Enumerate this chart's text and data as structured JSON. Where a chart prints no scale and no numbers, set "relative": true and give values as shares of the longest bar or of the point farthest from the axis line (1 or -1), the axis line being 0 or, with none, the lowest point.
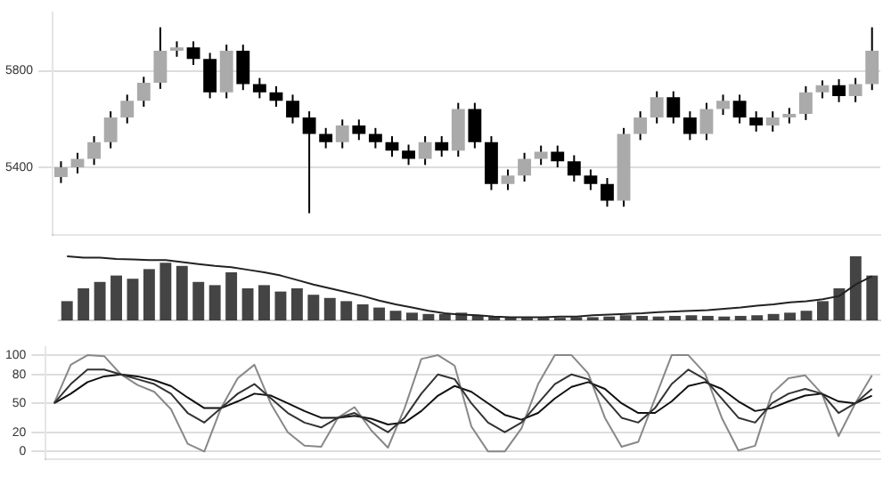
{
  "chart_data": [
    {
      "type": "candlestick",
      "categories": [
        null,
        null,
        null,
        null,
        null,
        null,
        null,
        null,
        null,
        null,
        null,
        null,
        null,
        null,
        null,
        null,
        null,
        null,
        null,
        null,
        null,
        null,
        null,
        null,
        null,
        null,
        null,
        null,
        null,
        null,
        null,
        null,
        null,
        null,
        null,
        null,
        null,
        null,
        null,
        null,
        null,
        null,
        null,
        null,
        null,
        null,
        null,
        null,
        null,
        null
      ],
      "ohlc": [
        [
          5360,
          5425,
          5335,
          5400
        ],
        [
          5400,
          5460,
          5375,
          5435
        ],
        [
          5435,
          5529,
          5410,
          5504
        ],
        [
          5504,
          5632,
          5479,
          5607
        ],
        [
          5607,
          5701,
          5582,
          5676
        ],
        [
          5676,
          5775,
          5651,
          5750
        ],
        [
          5750,
          5980,
          5725,
          5883
        ],
        [
          5883,
          5922,
          5858,
          5897
        ],
        [
          5897,
          5922,
          5824,
          5849
        ],
        [
          5849,
          5874,
          5686,
          5711
        ],
        [
          5711,
          5908,
          5686,
          5883
        ],
        [
          5883,
          5908,
          5720,
          5745
        ],
        [
          5745,
          5770,
          5686,
          5711
        ],
        [
          5711,
          5736,
          5651,
          5676
        ],
        [
          5676,
          5701,
          5582,
          5607
        ],
        [
          5607,
          5632,
          5210,
          5538
        ],
        [
          5538,
          5563,
          5479,
          5504
        ],
        [
          5504,
          5598,
          5479,
          5573
        ],
        [
          5573,
          5598,
          5513,
          5538
        ],
        [
          5538,
          5563,
          5479,
          5504
        ],
        [
          5504,
          5529,
          5444,
          5469
        ],
        [
          5469,
          5494,
          5410,
          5435
        ],
        [
          5435,
          5529,
          5410,
          5504
        ],
        [
          5504,
          5529,
          5444,
          5469
        ],
        [
          5469,
          5667,
          5444,
          5642
        ],
        [
          5642,
          5667,
          5479,
          5504
        ],
        [
          5504,
          5529,
          5306,
          5331
        ],
        [
          5331,
          5391,
          5306,
          5366
        ],
        [
          5366,
          5460,
          5341,
          5435
        ],
        [
          5435,
          5490,
          5410,
          5465
        ],
        [
          5465,
          5490,
          5400,
          5425
        ],
        [
          5425,
          5450,
          5341,
          5366
        ],
        [
          5366,
          5391,
          5306,
          5331
        ],
        [
          5331,
          5356,
          5237,
          5262
        ],
        [
          5262,
          5563,
          5237,
          5538
        ],
        [
          5538,
          5632,
          5513,
          5607
        ],
        [
          5607,
          5715,
          5582,
          5690
        ],
        [
          5690,
          5715,
          5582,
          5607
        ],
        [
          5607,
          5632,
          5513,
          5538
        ],
        [
          5538,
          5667,
          5513,
          5642
        ],
        [
          5642,
          5701,
          5617,
          5676
        ],
        [
          5676,
          5701,
          5582,
          5607
        ],
        [
          5607,
          5632,
          5548,
          5573
        ],
        [
          5573,
          5632,
          5548,
          5607
        ],
        [
          5607,
          5646,
          5582,
          5621
        ],
        [
          5621,
          5736,
          5596,
          5711
        ],
        [
          5711,
          5760,
          5686,
          5740
        ],
        [
          5740,
          5765,
          5670,
          5695
        ],
        [
          5695,
          5770,
          5670,
          5745
        ],
        [
          5745,
          5980,
          5720,
          5883
        ]
      ],
      "ylim": [
        5120,
        6040
      ],
      "yticks": [
        5400,
        5800
      ],
      "grid": "y"
    },
    {
      "type": "bar",
      "relative": true,
      "categories": [
        null,
        null,
        null,
        null,
        null,
        null,
        null,
        null,
        null,
        null,
        null,
        null,
        null,
        null,
        null,
        null,
        null,
        null,
        null,
        null,
        null,
        null,
        null,
        null,
        null,
        null,
        null,
        null,
        null,
        null,
        null,
        null,
        null,
        null,
        null,
        null,
        null,
        null,
        null,
        null,
        null,
        null,
        null,
        null,
        null,
        null,
        null,
        null,
        null,
        null
      ],
      "color": "#444444",
      "values": [
        0.3,
        0.5,
        0.6,
        0.7,
        0.65,
        0.8,
        0.9,
        0.85,
        0.6,
        0.55,
        0.75,
        0.5,
        0.55,
        0.45,
        0.5,
        0.4,
        0.35,
        0.3,
        0.25,
        0.2,
        0.15,
        0.12,
        0.1,
        0.1,
        0.12,
        0.08,
        0.06,
        0.05,
        0.04,
        0.04,
        0.04,
        0.05,
        0.05,
        0.06,
        0.08,
        0.07,
        0.06,
        0.07,
        0.08,
        0.07,
        0.06,
        0.07,
        0.08,
        0.1,
        0.12,
        0.15,
        0.3,
        0.5,
        1,
        0.7
      ]
    },
    {
      "type": "line",
      "relative": true,
      "categories": [
        null,
        null,
        null,
        null,
        null,
        null,
        null,
        null,
        null,
        null,
        null,
        null,
        null,
        null,
        null,
        null,
        null,
        null,
        null,
        null,
        null,
        null,
        null,
        null,
        null,
        null,
        null,
        null,
        null,
        null,
        null,
        null,
        null,
        null,
        null,
        null,
        null,
        null,
        null,
        null,
        null,
        null,
        null,
        null,
        null,
        null,
        null,
        null,
        null,
        null
      ],
      "color": "#222222",
      "values": [
        1,
        0.98,
        0.98,
        0.96,
        0.95,
        0.94,
        0.94,
        0.91,
        0.88,
        0.85,
        0.83,
        0.79,
        0.75,
        0.7,
        0.63,
        0.56,
        0.5,
        0.44,
        0.38,
        0.31,
        0.25,
        0.2,
        0.15,
        0.11,
        0.09,
        0.08,
        0.06,
        0.05,
        0.05,
        0.05,
        0.06,
        0.06,
        0.08,
        0.09,
        0.1,
        0.11,
        0.13,
        0.14,
        0.15,
        0.16,
        0.18,
        0.2,
        0.23,
        0.25,
        0.28,
        0.3,
        0.33,
        0.38,
        0.56,
        0.69
      ]
    },
    {
      "type": "line",
      "categories": [
        null,
        null,
        null,
        null,
        null,
        null,
        null,
        null,
        null,
        null,
        null,
        null,
        null,
        null,
        null,
        null,
        null,
        null,
        null,
        null,
        null,
        null,
        null,
        null,
        null,
        null,
        null,
        null,
        null,
        null,
        null,
        null,
        null,
        null,
        null,
        null,
        null,
        null,
        null,
        null,
        null,
        null,
        null,
        null,
        null,
        null,
        null,
        null,
        null,
        null
      ],
      "series": [
        {
          "color": "#333333",
          "values": [
            50,
            70,
            85,
            85,
            80,
            75,
            70,
            60,
            40,
            30,
            45,
            60,
            70,
            55,
            40,
            30,
            25,
            35,
            40,
            30,
            20,
            35,
            60,
            80,
            75,
            50,
            30,
            20,
            30,
            50,
            70,
            80,
            75,
            55,
            35,
            30,
            45,
            70,
            85,
            75,
            55,
            35,
            30,
            50,
            60,
            65,
            60,
            40,
            50,
            65
          ]
        },
        {
          "color": "#111111",
          "values": [
            50,
            60,
            72,
            78,
            80,
            78,
            74,
            68,
            56,
            45,
            45,
            52,
            60,
            58,
            50,
            42,
            35,
            35,
            37,
            34,
            28,
            30,
            42,
            58,
            68,
            62,
            50,
            38,
            33,
            40,
            55,
            67,
            72,
            65,
            50,
            40,
            40,
            52,
            68,
            72,
            65,
            52,
            42,
            45,
            52,
            58,
            60,
            52,
            50,
            58
          ]
        },
        {
          "color": "#888888",
          "values": [
            50,
            90,
            100,
            99,
            80,
            69,
            62,
            44,
            8,
            0,
            45,
            76,
            90,
            49,
            20,
            6,
            5,
            35,
            46,
            22,
            4,
            45,
            96,
            100,
            89,
            26,
            0,
            0,
            24,
            70,
            100,
            100,
            81,
            35,
            5,
            10,
            55,
            100,
            100,
            81,
            35,
            1,
            6,
            60,
            76,
            79,
            60,
            16,
            50,
            79
          ]
        }
      ],
      "ylim": [
        -8,
        108
      ],
      "yticks": [
        0,
        20,
        50,
        80,
        100
      ],
      "grid": "y"
    }
  ]
}
